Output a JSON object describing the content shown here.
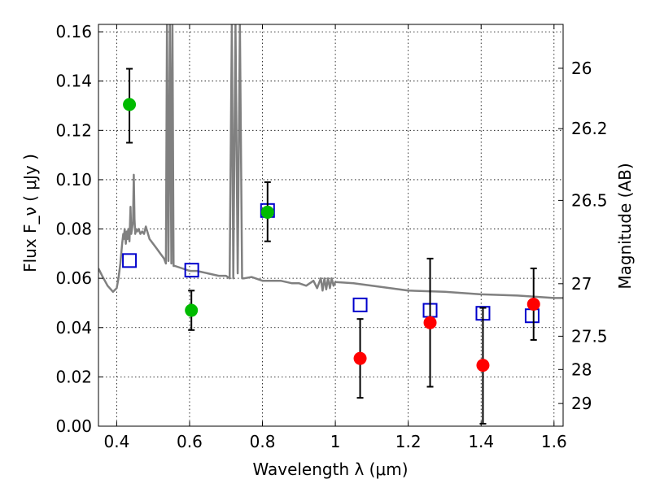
{
  "chart_data": {
    "type": "scatter",
    "xlabel": "Wavelength  λ (μm)",
    "ylabel": "Flux  F_ν  ( μJy )",
    "ylabel_right": "Magnitude (AB)",
    "xlim": [
      0.35,
      1.625
    ],
    "ylim": [
      0.0,
      0.163
    ],
    "grid": true,
    "x_ticks": [
      0.4,
      0.6,
      0.8,
      1.0,
      1.2,
      1.4,
      1.6
    ],
    "x_tick_labels": [
      "0.4",
      "0.6",
      "0.8",
      "1",
      "1.2",
      "1.4",
      "1.6"
    ],
    "y_ticks": [
      0.0,
      0.02,
      0.04,
      0.06,
      0.08,
      0.1,
      0.12,
      0.14,
      0.16
    ],
    "y_tick_labels": [
      "0.00",
      "0.02",
      "0.04",
      "0.06",
      "0.08",
      "0.10",
      "0.12",
      "0.14",
      "0.16"
    ],
    "right_ticks": [
      {
        "label": "26",
        "flux": 0.1452
      },
      {
        "label": "26.2",
        "flux": 0.1207
      },
      {
        "label": "26.5",
        "flux": 0.0916
      },
      {
        "label": "27",
        "flux": 0.0578
      },
      {
        "label": "27.5",
        "flux": 0.0365
      },
      {
        "label": "28",
        "flux": 0.023
      },
      {
        "label": "29",
        "flux": 0.0092
      }
    ],
    "series": [
      {
        "color": "#00bb00",
        "marker": "circle",
        "x": [
          0.435,
          0.605,
          0.814
        ],
        "y": [
          0.1305,
          0.047,
          0.0868
        ],
        "yerr_low": [
          0.115,
          0.039,
          0.075
        ],
        "yerr_high": [
          0.145,
          0.055,
          0.099
        ]
      },
      {
        "color": "#ff0000",
        "marker": "circle",
        "x": [
          1.068,
          1.26,
          1.405,
          1.544
        ],
        "y": [
          0.0275,
          0.042,
          0.0247,
          0.0495
        ],
        "yerr_low": [
          0.0115,
          0.016,
          0.001,
          0.035
        ],
        "yerr_high": [
          0.0435,
          0.068,
          0.048,
          0.064
        ]
      },
      {
        "color": "#0000cc",
        "marker": "open-square",
        "x": [
          0.435,
          0.606,
          0.814,
          1.068,
          1.26,
          1.405,
          1.54
        ],
        "y": [
          0.0672,
          0.0633,
          0.0875,
          0.0492,
          0.047,
          0.0458,
          0.0448
        ]
      },
      {
        "color": "#808080",
        "marker": "line",
        "x": [
          0.35,
          0.36,
          0.375,
          0.39,
          0.4,
          0.405,
          0.41,
          0.415,
          0.418,
          0.42,
          0.422,
          0.425,
          0.428,
          0.43,
          0.432,
          0.435,
          0.438,
          0.44,
          0.442,
          0.445,
          0.447,
          0.449,
          0.451,
          0.453,
          0.456,
          0.46,
          0.465,
          0.47,
          0.475,
          0.48,
          0.49,
          0.5,
          0.51,
          0.52,
          0.53,
          0.535,
          0.538,
          0.542,
          0.546,
          0.55,
          0.553,
          0.556,
          0.56,
          0.58,
          0.6,
          0.62,
          0.65,
          0.68,
          0.7,
          0.71,
          0.716,
          0.72,
          0.726,
          0.732,
          0.738,
          0.744,
          0.75,
          0.77,
          0.8,
          0.85,
          0.88,
          0.9,
          0.92,
          0.94,
          0.95,
          0.96,
          0.965,
          0.97,
          0.975,
          0.98,
          0.985,
          0.99,
          0.995,
          1.0,
          1.05,
          1.1,
          1.15,
          1.2,
          1.3,
          1.4,
          1.5,
          1.6,
          1.625
        ],
        "y": [
          0.064,
          0.061,
          0.057,
          0.0545,
          0.056,
          0.06,
          0.066,
          0.074,
          0.078,
          0.076,
          0.08,
          0.074,
          0.079,
          0.076,
          0.08,
          0.075,
          0.089,
          0.078,
          0.08,
          0.083,
          0.102,
          0.084,
          0.078,
          0.08,
          0.079,
          0.08,
          0.078,
          0.079,
          0.078,
          0.081,
          0.076,
          0.074,
          0.072,
          0.07,
          0.068,
          0.066,
          0.163,
          0.067,
          0.163,
          0.066,
          0.163,
          0.065,
          0.065,
          0.064,
          0.063,
          0.063,
          0.062,
          0.061,
          0.061,
          0.06,
          0.163,
          0.06,
          0.163,
          0.062,
          0.163,
          0.06,
          0.06,
          0.0605,
          0.059,
          0.059,
          0.058,
          0.058,
          0.057,
          0.059,
          0.056,
          0.06,
          0.055,
          0.06,
          0.0555,
          0.06,
          0.056,
          0.06,
          0.057,
          0.0585,
          0.058,
          0.057,
          0.056,
          0.055,
          0.0545,
          0.0535,
          0.053,
          0.052,
          0.052
        ]
      }
    ]
  }
}
